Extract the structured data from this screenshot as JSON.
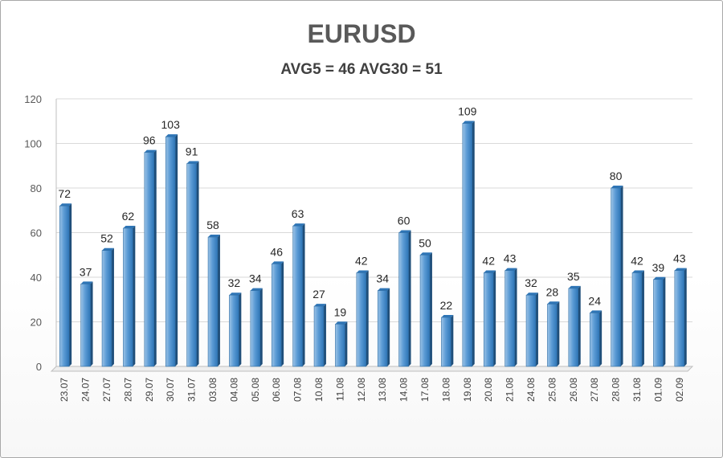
{
  "chart_data": {
    "type": "bar",
    "title": "EURUSD",
    "subtitle": "AVG5 = 46 AVG30 = 51",
    "categories": [
      "23.07",
      "24.07",
      "27.07",
      "28.07",
      "29.07",
      "30.07",
      "31.07",
      "03.08",
      "04.08",
      "05.08",
      "06.08",
      "07.08",
      "10.08",
      "11.08",
      "12.08",
      "13.08",
      "14.08",
      "17.08",
      "18.08",
      "19.08",
      "20.08",
      "21.08",
      "24.08",
      "25.08",
      "26.08",
      "27.08",
      "28.08",
      "31.08",
      "01.09",
      "02.09"
    ],
    "values": [
      72,
      37,
      52,
      62,
      96,
      103,
      91,
      58,
      32,
      34,
      46,
      63,
      27,
      19,
      42,
      34,
      60,
      50,
      22,
      109,
      42,
      43,
      32,
      28,
      35,
      24,
      80,
      42,
      39,
      43
    ],
    "ylim": [
      0,
      120
    ],
    "yticks": [
      0,
      20,
      40,
      60,
      80,
      100,
      120
    ],
    "grid": true,
    "data_labels": true,
    "colors": {
      "bar_light": "#9cc3e6",
      "bar_mid": "#5b9bd5",
      "bar_dark": "#2e75b6",
      "bar_side": "#1f4e79",
      "grid": "#d9d9d9",
      "axis": "#bfbfbf"
    }
  }
}
